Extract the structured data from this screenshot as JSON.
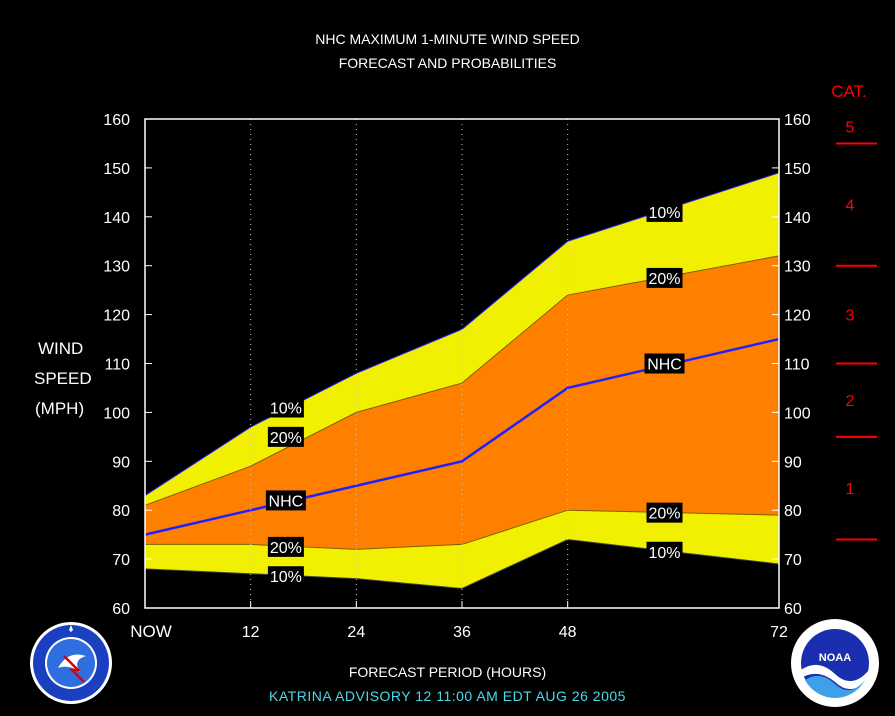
{
  "title_line1": "NHC MAXIMUM 1-MINUTE WIND SPEED",
  "title_line2": "FORECAST AND PROBABILITIES",
  "ylabel": [
    "WIND",
    "SPEED",
    "(MPH)"
  ],
  "xlabel": "FORECAST PERIOD (HOURS)",
  "advisory": "KATRINA   ADVISORY  12 11:00 AM EDT AUG 26 2005",
  "cat_title": "CAT.",
  "colors": {
    "outer_band": "#f0f000",
    "inner_band": "#ff8000",
    "nhc_line": "#2020ff",
    "cat_text": "#ff0000",
    "advisory_text": "#4cd8e8"
  },
  "chart_data": {
    "type": "area",
    "x_ticks": [
      0,
      12,
      24,
      36,
      48,
      72
    ],
    "x_tick_labels": [
      "NOW",
      "12",
      "24",
      "36",
      "48",
      "72"
    ],
    "xlim": [
      0,
      72
    ],
    "ylim": [
      60,
      160
    ],
    "y_ticks": [
      60,
      70,
      80,
      90,
      100,
      110,
      120,
      130,
      140,
      150,
      160
    ],
    "grid": "vertical dotted at 12, 24, 36, 48",
    "x": [
      0,
      12,
      24,
      36,
      48,
      72
    ],
    "series": [
      {
        "name": "10%",
        "values": [
          83,
          97,
          108,
          117,
          135,
          149
        ]
      },
      {
        "name": "20%",
        "values": [
          81,
          89,
          100,
          106,
          124,
          132
        ]
      },
      {
        "name": "NHC",
        "values": [
          75,
          80,
          85,
          90,
          105,
          115
        ]
      },
      {
        "name": "20%",
        "values": [
          73,
          73,
          72,
          73,
          80,
          79
        ]
      },
      {
        "name": "10%",
        "values": [
          68,
          67,
          66,
          64,
          74,
          69
        ]
      }
    ],
    "labels": [
      {
        "text": "10%",
        "x": 16,
        "y": 101
      },
      {
        "text": "20%",
        "x": 16,
        "y": 95
      },
      {
        "text": "NHC",
        "x": 16,
        "y": 82
      },
      {
        "text": "20%",
        "x": 16,
        "y": 72.5
      },
      {
        "text": "10%",
        "x": 16,
        "y": 66.5
      },
      {
        "text": "10%",
        "x": 59,
        "y": 141
      },
      {
        "text": "20%",
        "x": 59,
        "y": 127.5
      },
      {
        "text": "NHC",
        "x": 59,
        "y": 110
      },
      {
        "text": "20%",
        "x": 59,
        "y": 79.5
      },
      {
        "text": "10%",
        "x": 59,
        "y": 71.5
      }
    ],
    "categories": [
      {
        "label": "5",
        "min": 155,
        "max": 160
      },
      {
        "label": "4",
        "min": 130,
        "max": 155
      },
      {
        "label": "3",
        "min": 110,
        "max": 130
      },
      {
        "label": "2",
        "min": 95,
        "max": 110
      },
      {
        "label": "1",
        "min": 74,
        "max": 95
      }
    ],
    "category_boundaries": [
      74,
      95,
      110,
      130,
      155
    ]
  }
}
